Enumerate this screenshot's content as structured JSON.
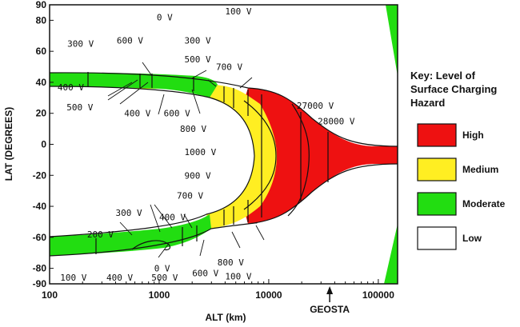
{
  "chart_data": {
    "type": "contour-map",
    "xlabel": "ALT (km)",
    "ylabel": "LAT (DEGREES)",
    "x_scale": "log",
    "xlim": [
      100,
      150000
    ],
    "ylim": [
      -90,
      90
    ],
    "x_ticks": [
      {
        "label": "100",
        "value": 100
      },
      {
        "label": "1000",
        "value": 1000
      },
      {
        "label": "10000",
        "value": 10000
      },
      {
        "label": "100000",
        "value": 100000
      }
    ],
    "y_ticks": [
      {
        "label": "90",
        "value": 90
      },
      {
        "label": "80",
        "value": 80
      },
      {
        "label": "60",
        "value": 60
      },
      {
        "label": "40",
        "value": 40
      },
      {
        "label": "20",
        "value": 20
      },
      {
        "label": "0",
        "value": 0
      },
      {
        "label": "-20",
        "value": -20
      },
      {
        "label": "-40",
        "value": -40
      },
      {
        "label": "-60",
        "value": -60
      },
      {
        "label": "-80",
        "value": -80
      },
      {
        "label": "-90",
        "value": -90
      }
    ],
    "marker": {
      "label": "GEOSTA",
      "x": 36000
    },
    "regions": [
      {
        "level": "Moderate",
        "color": "#22dd11",
        "description": "high-latitude wings of the charging zone"
      },
      {
        "level": "Medium",
        "color": "#ffee22",
        "description": "band between about 2500 and 12000 km"
      },
      {
        "level": "High",
        "color": "#ee1111",
        "description": "region beyond about 10000 km narrowing to the equator"
      }
    ],
    "contour_labels": [
      {
        "text": "0 V",
        "x": 950,
        "y": 82
      },
      {
        "text": "0 V",
        "x": 900,
        "y": -80
      },
      {
        "text": "100 V",
        "x": 4000,
        "y": 90
      },
      {
        "text": "100 V",
        "x": 125,
        "y": -86
      },
      {
        "text": "100 V",
        "x": 4000,
        "y": -85
      },
      {
        "text": "300 V",
        "x": 145,
        "y": 65
      },
      {
        "text": "600 V",
        "x": 410,
        "y": 67
      },
      {
        "text": "300 V",
        "x": 1700,
        "y": 67
      },
      {
        "text": "500 V",
        "x": 1700,
        "y": 55
      },
      {
        "text": "700 V",
        "x": 3300,
        "y": 50
      },
      {
        "text": "400 V",
        "x": 118,
        "y": 37
      },
      {
        "text": "500 V",
        "x": 143,
        "y": 24
      },
      {
        "text": "400 V",
        "x": 480,
        "y": 20
      },
      {
        "text": "600 V",
        "x": 1100,
        "y": 20
      },
      {
        "text": "27000 V",
        "x": 18000,
        "y": 25
      },
      {
        "text": "28000 V",
        "x": 28000,
        "y": 15
      },
      {
        "text": "800 V",
        "x": 1550,
        "y": 10
      },
      {
        "text": "1000 V",
        "x": 1700,
        "y": -5
      },
      {
        "text": "900 V",
        "x": 1700,
        "y": -20
      },
      {
        "text": "700 V",
        "x": 1450,
        "y": -33
      },
      {
        "text": "300 V",
        "x": 400,
        "y": -44
      },
      {
        "text": "400 V",
        "x": 1000,
        "y": -47
      },
      {
        "text": "200 V",
        "x": 220,
        "y": -58
      },
      {
        "text": "800 V",
        "x": 3400,
        "y": -76
      },
      {
        "text": "600 V",
        "x": 2000,
        "y": -83
      },
      {
        "text": "400 V",
        "x": 330,
        "y": -90
      },
      {
        "text": "500 V",
        "x": 850,
        "y": -88
      }
    ],
    "legend": {
      "title_lines": [
        "Key: Level of",
        "Surface Charging",
        "Hazard"
      ],
      "placement": "right",
      "entries": [
        {
          "label": "High",
          "color": "#ee1111"
        },
        {
          "label": "Medium",
          "color": "#ffee22"
        },
        {
          "label": "Moderate",
          "color": "#22dd11"
        },
        {
          "label": "Low",
          "color": "#ffffff"
        }
      ]
    }
  }
}
